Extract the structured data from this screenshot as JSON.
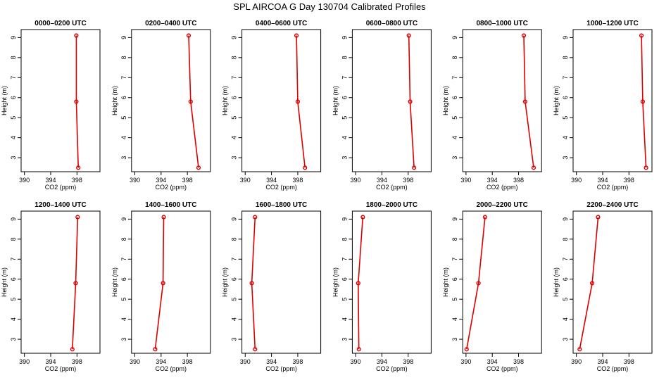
{
  "figure": {
    "title": "SPL AIRCOA G  Day 130704  Calibrated Profiles"
  },
  "colors": {
    "series": "#dd0000",
    "axes": "#000000",
    "background": "#ffffff"
  },
  "chart_data": [
    {
      "type": "line",
      "title": "0000–0200 UTC",
      "xlabel": "CO2 (ppm)",
      "ylabel": "Height (m)",
      "xlim": [
        389.5,
        401.5
      ],
      "ylim": [
        2.3,
        9.4
      ],
      "xticks": [
        390,
        394,
        398
      ],
      "yticks": [
        3,
        4,
        5,
        6,
        7,
        8,
        9
      ],
      "grid": false,
      "marker": "circle",
      "x": [
        398.2,
        397.9,
        397.9
      ],
      "y": [
        2.5,
        5.8,
        9.1
      ]
    },
    {
      "type": "line",
      "title": "0200–0400 UTC",
      "xlabel": "CO2 (ppm)",
      "ylabel": "Height (m)",
      "xlim": [
        389.5,
        401.5
      ],
      "ylim": [
        2.3,
        9.4
      ],
      "xticks": [
        390,
        394,
        398
      ],
      "yticks": [
        3,
        4,
        5,
        6,
        7,
        8,
        9
      ],
      "grid": false,
      "marker": "circle",
      "x": [
        399.7,
        398.5,
        398.2
      ],
      "y": [
        2.5,
        5.8,
        9.1
      ]
    },
    {
      "type": "line",
      "title": "0400–0600 UTC",
      "xlabel": "CO2 (ppm)",
      "ylabel": "Height (m)",
      "xlim": [
        389.5,
        401.5
      ],
      "ylim": [
        2.3,
        9.4
      ],
      "xticks": [
        390,
        394,
        398
      ],
      "yticks": [
        3,
        4,
        5,
        6,
        7,
        8,
        9
      ],
      "grid": false,
      "marker": "circle",
      "x": [
        399.1,
        398.0,
        397.8
      ],
      "y": [
        2.5,
        5.8,
        9.1
      ]
    },
    {
      "type": "line",
      "title": "0600–0800 UTC",
      "xlabel": "CO2 (ppm)",
      "ylabel": "Height (m)",
      "xlim": [
        389.5,
        401.5
      ],
      "ylim": [
        2.3,
        9.4
      ],
      "xticks": [
        390,
        394,
        398
      ],
      "yticks": [
        3,
        4,
        5,
        6,
        7,
        8,
        9
      ],
      "grid": false,
      "marker": "circle",
      "x": [
        398.9,
        398.3,
        398.1
      ],
      "y": [
        2.5,
        5.8,
        9.1
      ]
    },
    {
      "type": "line",
      "title": "0800–1000 UTC",
      "xlabel": "CO2 (ppm)",
      "ylabel": "Height (m)",
      "xlim": [
        389.5,
        401.5
      ],
      "ylim": [
        2.3,
        9.4
      ],
      "xticks": [
        390,
        394,
        398
      ],
      "yticks": [
        3,
        4,
        5,
        6,
        7,
        8,
        9
      ],
      "grid": false,
      "marker": "circle",
      "x": [
        400.3,
        399.0,
        398.8
      ],
      "y": [
        2.5,
        5.8,
        9.1
      ]
    },
    {
      "type": "line",
      "title": "1000–1200 UTC",
      "xlabel": "CO2 (ppm)",
      "ylabel": "Height (m)",
      "xlim": [
        389.5,
        401.5
      ],
      "ylim": [
        2.3,
        9.4
      ],
      "xticks": [
        390,
        394,
        398
      ],
      "yticks": [
        3,
        4,
        5,
        6,
        7,
        8,
        9
      ],
      "grid": false,
      "marker": "circle",
      "x": [
        400.6,
        400.1,
        399.9
      ],
      "y": [
        2.5,
        5.8,
        9.1
      ]
    },
    {
      "type": "line",
      "title": "1200–1400 UTC",
      "xlabel": "CO2 (ppm)",
      "ylabel": "Height (m)",
      "xlim": [
        389.5,
        401.5
      ],
      "ylim": [
        2.3,
        9.4
      ],
      "xticks": [
        390,
        394,
        398
      ],
      "yticks": [
        3,
        4,
        5,
        6,
        7,
        8,
        9
      ],
      "grid": false,
      "marker": "circle",
      "x": [
        397.3,
        397.8,
        398.1
      ],
      "y": [
        2.5,
        5.8,
        9.1
      ]
    },
    {
      "type": "line",
      "title": "1400–1600 UTC",
      "xlabel": "CO2 (ppm)",
      "ylabel": "Height (m)",
      "xlim": [
        389.5,
        401.5
      ],
      "ylim": [
        2.3,
        9.4
      ],
      "xticks": [
        390,
        394,
        398
      ],
      "yticks": [
        3,
        4,
        5,
        6,
        7,
        8,
        9
      ],
      "grid": false,
      "marker": "circle",
      "x": [
        393.1,
        394.3,
        394.4
      ],
      "y": [
        2.5,
        5.8,
        9.1
      ]
    },
    {
      "type": "line",
      "title": "1600–1800 UTC",
      "xlabel": "CO2 (ppm)",
      "ylabel": "Height (m)",
      "xlim": [
        389.5,
        401.5
      ],
      "ylim": [
        2.3,
        9.4
      ],
      "xticks": [
        390,
        394,
        398
      ],
      "yticks": [
        3,
        4,
        5,
        6,
        7,
        8,
        9
      ],
      "grid": false,
      "marker": "circle",
      "x": [
        391.5,
        391.0,
        391.5
      ],
      "y": [
        2.5,
        5.8,
        9.1
      ]
    },
    {
      "type": "line",
      "title": "1800–2000 UTC",
      "xlabel": "CO2 (ppm)",
      "ylabel": "Height (m)",
      "xlim": [
        389.5,
        401.5
      ],
      "ylim": [
        2.3,
        9.4
      ],
      "xticks": [
        390,
        394,
        398
      ],
      "yticks": [
        3,
        4,
        5,
        6,
        7,
        8,
        9
      ],
      "grid": false,
      "marker": "circle",
      "x": [
        390.5,
        390.4,
        391.1
      ],
      "y": [
        2.5,
        5.8,
        9.1
      ]
    },
    {
      "type": "line",
      "title": "2000–2200 UTC",
      "xlabel": "CO2 (ppm)",
      "ylabel": "Height (m)",
      "xlim": [
        389.5,
        401.5
      ],
      "ylim": [
        2.3,
        9.4
      ],
      "xticks": [
        390,
        394,
        398
      ],
      "yticks": [
        3,
        4,
        5,
        6,
        7,
        8,
        9
      ],
      "grid": false,
      "marker": "circle",
      "x": [
        390.1,
        391.9,
        392.9
      ],
      "y": [
        2.5,
        5.8,
        9.1
      ]
    },
    {
      "type": "line",
      "title": "2200–2400 UTC",
      "xlabel": "CO2 (ppm)",
      "ylabel": "Height (m)",
      "xlim": [
        389.5,
        401.5
      ],
      "ylim": [
        2.3,
        9.4
      ],
      "xticks": [
        390,
        394,
        398
      ],
      "yticks": [
        3,
        4,
        5,
        6,
        7,
        8,
        9
      ],
      "grid": false,
      "marker": "circle",
      "x": [
        390.5,
        392.4,
        393.3
      ],
      "y": [
        2.5,
        5.8,
        9.1
      ]
    }
  ]
}
